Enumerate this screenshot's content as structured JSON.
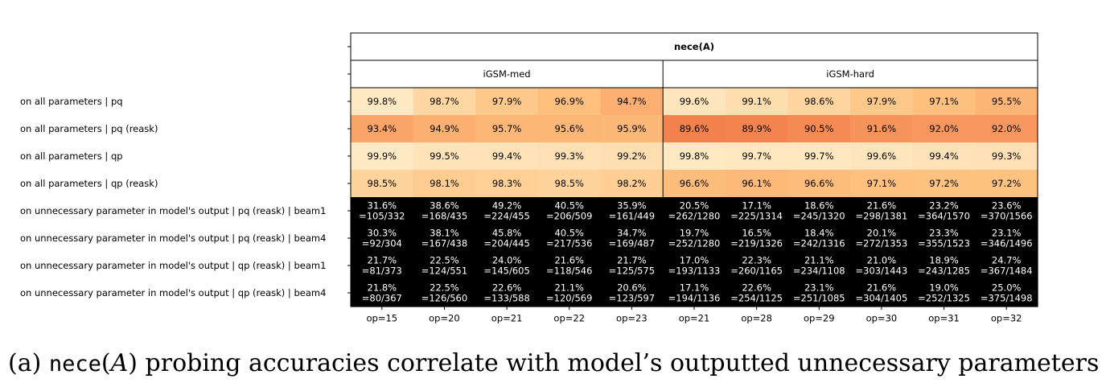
{
  "chart_data": {
    "type": "heatmap",
    "title": "nece(A)",
    "groups": [
      {
        "name": "iGSM-med",
        "columns": [
          "op=15",
          "op=20",
          "op=21",
          "op=22",
          "op=23"
        ]
      },
      {
        "name": "iGSM-hard",
        "columns": [
          "op=21",
          "op=28",
          "op=29",
          "op=30",
          "op=31",
          "op=32"
        ]
      }
    ],
    "rows": [
      "on all parameters | pq",
      "on all parameters | pq (reask)",
      "on all parameters | qp",
      "on all parameters | qp (reask)",
      "on unnecessary parameter in model's output | pq (reask) | beam1",
      "on unnecessary parameter in model's output | pq (reask) | beam4",
      "on unnecessary parameter in model's output | qp (reask) | beam1",
      "on unnecessary parameter in model's output | qp (reask) | beam4"
    ],
    "values": [
      [
        99.8,
        98.7,
        97.9,
        96.9,
        94.7,
        99.6,
        99.1,
        98.6,
        97.9,
        97.1,
        95.5
      ],
      [
        93.4,
        94.9,
        95.7,
        95.6,
        95.9,
        89.6,
        89.9,
        90.5,
        91.6,
        92.0,
        92.0
      ],
      [
        99.9,
        99.5,
        99.4,
        99.3,
        99.2,
        99.8,
        99.7,
        99.7,
        99.6,
        99.4,
        99.3
      ],
      [
        98.5,
        98.1,
        98.3,
        98.5,
        98.2,
        96.6,
        96.1,
        96.6,
        97.1,
        97.2,
        97.2
      ],
      [
        31.6,
        38.6,
        49.2,
        40.5,
        35.9,
        20.5,
        17.1,
        18.6,
        21.6,
        23.2,
        23.6
      ],
      [
        30.3,
        38.1,
        45.8,
        40.5,
        34.7,
        19.7,
        16.5,
        18.4,
        20.1,
        23.3,
        23.1
      ],
      [
        21.7,
        22.5,
        24.0,
        21.6,
        21.7,
        17.0,
        22.3,
        21.1,
        21.0,
        18.9,
        24.7
      ],
      [
        21.8,
        22.5,
        22.6,
        21.1,
        20.6,
        17.1,
        22.6,
        23.1,
        21.6,
        19.0,
        25.0
      ]
    ],
    "cell_labels": [
      [
        "99.8%",
        "98.7%",
        "97.9%",
        "96.9%",
        "94.7%",
        "99.6%",
        "99.1%",
        "98.6%",
        "97.9%",
        "97.1%",
        "95.5%"
      ],
      [
        "93.4%",
        "94.9%",
        "95.7%",
        "95.6%",
        "95.9%",
        "89.6%",
        "89.9%",
        "90.5%",
        "91.6%",
        "92.0%",
        "92.0%"
      ],
      [
        "99.9%",
        "99.5%",
        "99.4%",
        "99.3%",
        "99.2%",
        "99.8%",
        "99.7%",
        "99.7%",
        "99.6%",
        "99.4%",
        "99.3%"
      ],
      [
        "98.5%",
        "98.1%",
        "98.3%",
        "98.5%",
        "98.2%",
        "96.6%",
        "96.1%",
        "96.6%",
        "97.1%",
        "97.2%",
        "97.2%"
      ],
      [
        "31.6%\n=105/332",
        "38.6%\n=168/435",
        "49.2%\n=224/455",
        "40.5%\n=206/509",
        "35.9%\n=161/449",
        "20.5%\n=262/1280",
        "17.1%\n=225/1314",
        "18.6%\n=245/1320",
        "21.6%\n=298/1381",
        "23.2%\n=364/1570",
        "23.6%\n=370/1566"
      ],
      [
        "30.3%\n=92/304",
        "38.1%\n=167/438",
        "45.8%\n=204/445",
        "40.5%\n=217/536",
        "34.7%\n=169/487",
        "19.7%\n=252/1280",
        "16.5%\n=219/1326",
        "18.4%\n=242/1316",
        "20.1%\n=272/1353",
        "23.3%\n=355/1523",
        "23.1%\n=346/1496"
      ],
      [
        "21.7%\n=81/373",
        "22.5%\n=124/551",
        "24.0%\n=145/605",
        "21.6%\n=118/546",
        "21.7%\n=125/575",
        "17.0%\n=193/1133",
        "22.3%\n=260/1165",
        "21.1%\n=234/1108",
        "21.0%\n=303/1443",
        "18.9%\n=243/1285",
        "24.7%\n=367/1484"
      ],
      [
        "21.8%\n=80/367",
        "22.5%\n=126/560",
        "22.6%\n=133/588",
        "21.1%\n=120/569",
        "20.6%\n=123/597",
        "17.1%\n=194/1136",
        "22.6%\n=254/1125",
        "23.1%\n=251/1085",
        "21.6%\n=304/1405",
        "19.0%\n=252/1325",
        "25.0%\n=375/1498"
      ]
    ],
    "color_scale": {
      "low": "#000000",
      "high": "#ffffff",
      "range": [
        70,
        100
      ]
    },
    "grid": false
  },
  "caption": {
    "prefix": "(a) ",
    "mono": "nece",
    "open": "(",
    "var": "A",
    "close": ")",
    "rest": " probing accuracies correlate with model’s outputted unnecessary parameters"
  }
}
